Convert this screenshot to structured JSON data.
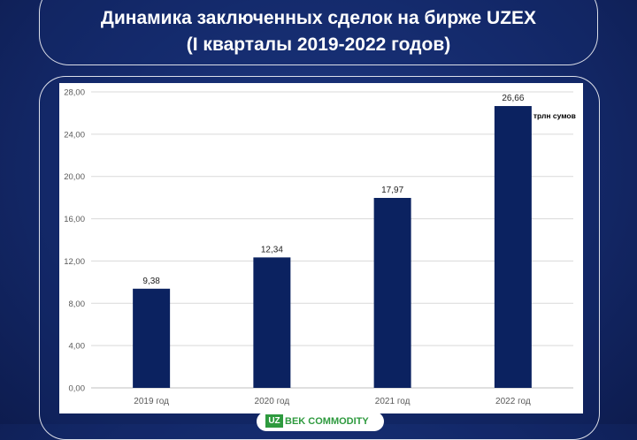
{
  "header": {
    "title_line1": "Динамика заключенных сделок на бирже UZEX",
    "title_line2": "(I кварталы 2019-2022 годов)"
  },
  "chart_data": {
    "type": "bar",
    "categories": [
      "2019 год",
      "2020 год",
      "2021 год",
      "2022 год"
    ],
    "values": [
      9.38,
      12.34,
      17.97,
      26.66
    ],
    "value_labels": [
      "9,38",
      "12,34",
      "17,97",
      "26,66"
    ],
    "ylim": [
      0,
      28
    ],
    "yticks": [
      "0,00",
      "4,00",
      "8,00",
      "12,00",
      "16,00",
      "20,00",
      "24,00",
      "28,00"
    ],
    "unit_annotation": "трлн сумов",
    "bar_color": "#0b2260",
    "grid": true
  },
  "logo": {
    "mark": "UZ",
    "text": "BEK COMMODITY"
  }
}
